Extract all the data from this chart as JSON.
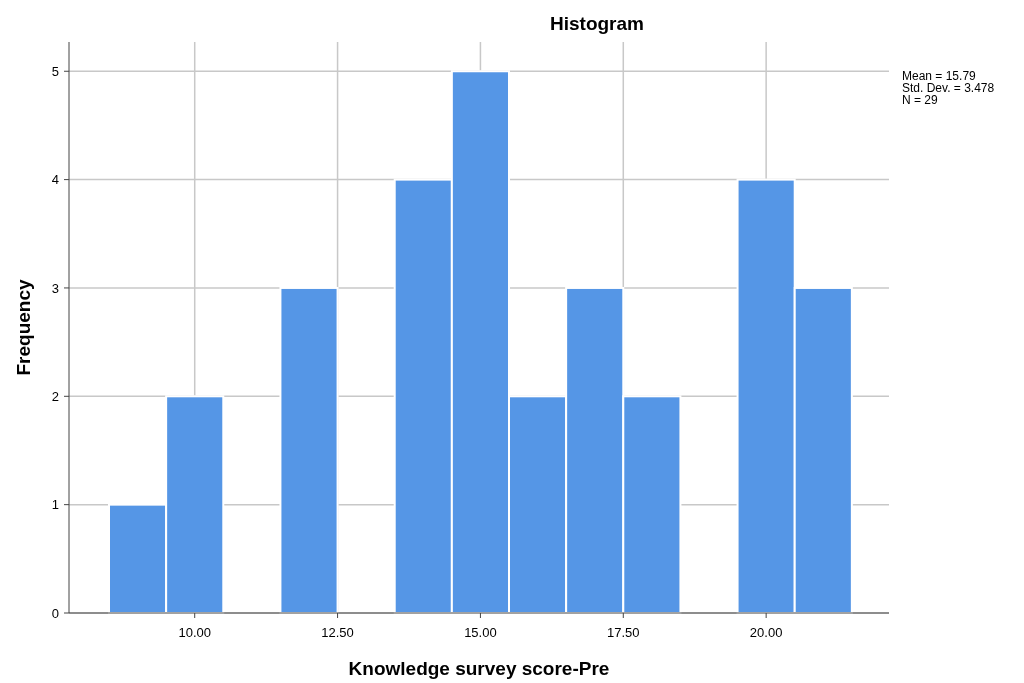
{
  "chart_data": {
    "type": "histogram",
    "title": "Histogram",
    "xlabel": "Knowledge survey score-Pre",
    "ylabel": "Frequency",
    "bins": [
      8.5,
      9.5,
      10.5,
      11.5,
      12.5,
      13.5,
      14.5,
      15.5,
      16.5,
      17.5,
      18.5,
      19.5,
      20.5,
      21.5
    ],
    "values": [
      1,
      2,
      0,
      3,
      0,
      4,
      5,
      2,
      3,
      2,
      0,
      4,
      3
    ],
    "color": "#5596e6",
    "xlim": [
      7.8,
      22.15
    ],
    "xticks": [
      {
        "value": 10,
        "label": "10.00"
      },
      {
        "value": 12.5,
        "label": "12.50"
      },
      {
        "value": 15,
        "label": "15.00"
      },
      {
        "value": 17.5,
        "label": "17.50"
      },
      {
        "value": 20,
        "label": "20.00"
      }
    ],
    "ylim": [
      0,
      5.27
    ],
    "yticks": [
      0,
      1,
      2,
      3,
      4,
      5
    ],
    "grid": true,
    "annotations": [
      "Mean = 15.79",
      "Std. Dev. = 3.478",
      "N = 29"
    ]
  }
}
